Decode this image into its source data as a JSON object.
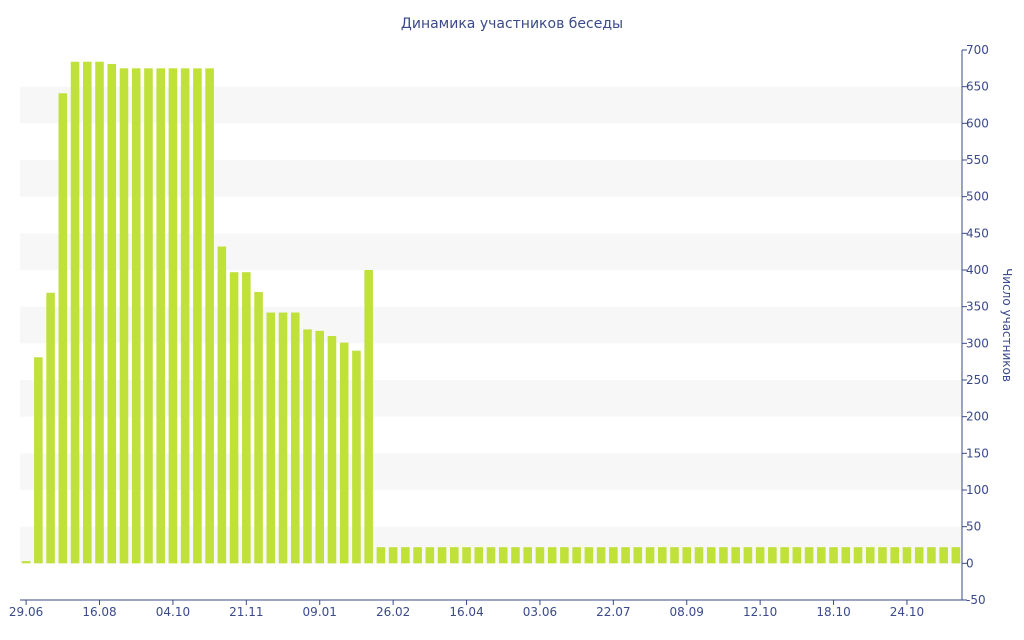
{
  "chart_data": {
    "type": "bar",
    "title": "Динамика участников беседы",
    "xlabel": "",
    "ylabel": "Число участников",
    "ylim": [
      -50,
      700
    ],
    "y_ticks": [
      -50,
      0,
      50,
      100,
      150,
      200,
      250,
      300,
      350,
      400,
      450,
      500,
      550,
      600,
      650,
      700
    ],
    "y_axis_side": "right",
    "grid": "alternating horizontal bands",
    "bar_color": "#c0e03a",
    "band_color": "#f7f7f7",
    "text_color": "#3a4a8a",
    "x_tick_labels": [
      {
        "label": "29.06",
        "index": 0
      },
      {
        "label": "16.08",
        "index": 6
      },
      {
        "label": "04.10",
        "index": 12
      },
      {
        "label": "21.11",
        "index": 18
      },
      {
        "label": "09.01",
        "index": 24
      },
      {
        "label": "26.02",
        "index": 30
      },
      {
        "label": "16.04",
        "index": 36
      },
      {
        "label": "03.06",
        "index": 42
      },
      {
        "label": "22.07",
        "index": 48
      },
      {
        "label": "08.09",
        "index": 54
      },
      {
        "label": "12.10",
        "index": 60
      },
      {
        "label": "18.10",
        "index": 66
      },
      {
        "label": "24.10",
        "index": 72
      }
    ],
    "values": [
      3,
      281,
      369,
      641,
      684,
      684,
      684,
      681,
      675,
      675,
      675,
      675,
      675,
      675,
      675,
      675,
      432,
      397,
      397,
      370,
      342,
      342,
      342,
      319,
      317,
      310,
      301,
      290,
      400,
      22,
      22,
      22,
      22,
      22,
      22,
      22,
      22,
      22,
      22,
      22,
      22,
      22,
      22,
      22,
      22,
      22,
      22,
      22,
      22,
      22,
      22,
      22,
      22,
      22,
      22,
      22,
      22,
      22,
      22,
      22,
      22,
      22,
      22,
      22,
      22,
      22,
      22,
      22,
      22,
      22,
      22,
      22,
      22,
      22,
      22,
      22,
      22
    ]
  }
}
